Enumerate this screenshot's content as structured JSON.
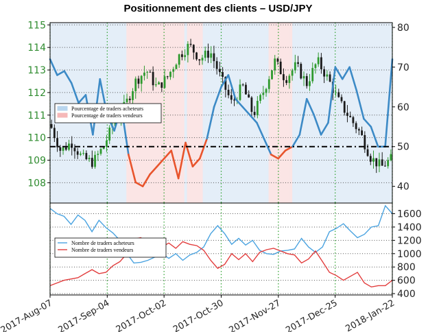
{
  "chart_data": [
    {
      "type": "line",
      "title": "Positionnement des clients – USD/JPY",
      "y_left_ticks": [
        "115",
        "114",
        "113",
        "112",
        "111",
        "110",
        "109",
        "108"
      ],
      "y_left_range": [
        107.1,
        115.1
      ],
      "y_right_ticks": [
        "80",
        "70",
        "60",
        "50",
        "40"
      ],
      "y_right_range": [
        35.8,
        81.2
      ],
      "reference_line_value": 50,
      "grid": true,
      "legend": "left",
      "colors": {
        "buyers": "#3c8ac6",
        "sellers": "#e8542c",
        "candle_up": "#2e9a2e",
        "candle_down": "#1a1a1a",
        "bg_buyers": "#e4eef8",
        "bg_sellers": "#fbe5e5",
        "tick_left": "#2e8b2e"
      },
      "series": [
        {
          "name": "Pourcentage de traders acheteurs",
          "color": "#b9d6ee"
        },
        {
          "name": "Pourcentage de traders vendeurs",
          "color": "#f6b8b8"
        }
      ],
      "pct_long_weekly": [
        72,
        68,
        69,
        66,
        61,
        63,
        53,
        67,
        58,
        54,
        60,
        48,
        41,
        40,
        43,
        45,
        47,
        49,
        42,
        51,
        45,
        47,
        52,
        60,
        65,
        68,
        62,
        60,
        58,
        56,
        52,
        48,
        47,
        49,
        50,
        53,
        62,
        58,
        53,
        56,
        70,
        67,
        70,
        64,
        57,
        55,
        50,
        50,
        72
      ],
      "usdjpy_weekly": [
        110.6,
        109.4,
        109.8,
        109.1,
        108.9,
        109.6,
        110.7,
        111.4,
        112.5,
        113.0,
        112.2,
        112.7,
        113.6,
        114.1,
        113.5,
        113.8,
        112.6,
        111.5,
        112.3,
        111.0,
        112.1,
        113.4,
        112.6,
        113.2,
        112.4,
        113.4,
        112.6,
        111.6,
        110.9,
        110.2,
        109.1,
        108.7,
        109.1
      ]
    },
    {
      "type": "line",
      "y_right_ticks": [
        "1600",
        "1400",
        "1200",
        "1000",
        "800",
        "600",
        "400"
      ],
      "y_right_range": [
        380,
        1760
      ],
      "x_ticks": [
        "2017-Aug-07",
        "2017-Sep-04",
        "2017-Oct-02",
        "2017-Oct-30",
        "2017-Nov-27",
        "2017-Dec-25",
        "2018-Jan-22"
      ],
      "grid": true,
      "legend": "left",
      "series": [
        {
          "name": "Nombre de traders acheteurs",
          "color": "#4aa3e0",
          "values": [
            1680,
            1600,
            1560,
            1440,
            1580,
            1500,
            1330,
            1500,
            1390,
            1310,
            1200,
            1000,
            860,
            870,
            900,
            950,
            1000,
            930,
            1000,
            900,
            980,
            1020,
            1100,
            1300,
            1420,
            1300,
            1140,
            1230,
            1130,
            1200,
            1050,
            1000,
            990,
            1040,
            1050,
            1070,
            1230,
            1100,
            1020,
            1100,
            1330,
            1380,
            1450,
            1340,
            1240,
            1290,
            1400,
            1420,
            1720,
            1600
          ]
        },
        {
          "name": "Nombre de traders vendeurs",
          "color": "#e23c3c",
          "values": [
            520,
            560,
            600,
            620,
            640,
            700,
            760,
            700,
            720,
            820,
            880,
            1000,
            1220,
            1240,
            1140,
            1160,
            1100,
            1160,
            1080,
            1180,
            1140,
            1120,
            1050,
            900,
            780,
            840,
            1000,
            910,
            1000,
            880,
            1020,
            1060,
            1080,
            1040,
            1000,
            980,
            860,
            920,
            1040,
            880,
            720,
            670,
            600,
            660,
            720,
            560,
            500,
            520,
            520,
            600
          ]
        }
      ]
    }
  ]
}
